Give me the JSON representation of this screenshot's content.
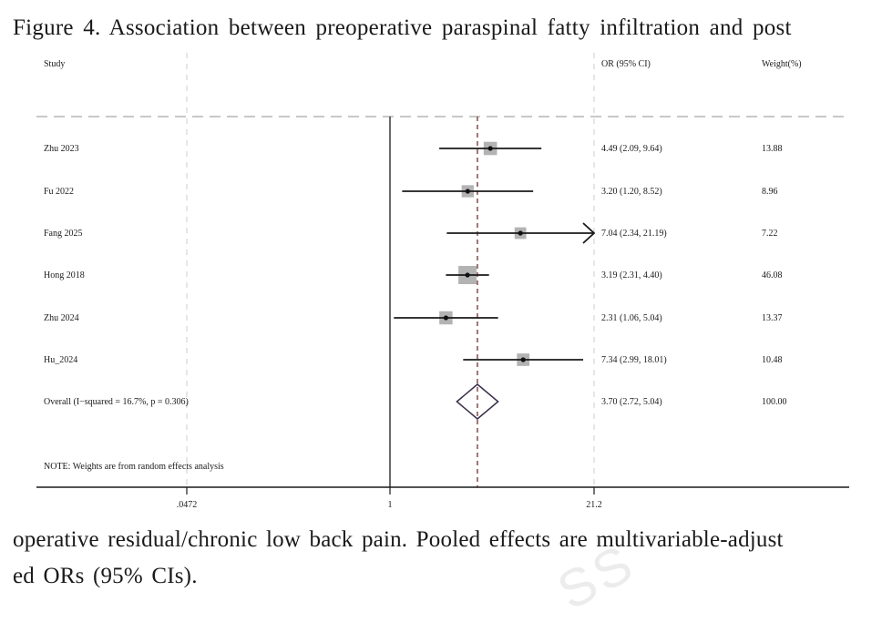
{
  "caption": {
    "top": "Figure 4. Association between preoperative paraspinal fatty infiltration and post",
    "bottom_line1": "operative residual/chronic low back pain. Pooled effects are multivariable-adjust",
    "bottom_line2": "ed ORs (95% CIs)."
  },
  "watermark": "SS",
  "chart_data": {
    "type": "forest",
    "x_scale": "log",
    "columns": {
      "study": "Study",
      "or": "OR (95% CI)",
      "weight": "Weight(%)"
    },
    "studies": [
      {
        "name": "Zhu 2023",
        "or": 4.49,
        "lo": 2.09,
        "hi": 9.64,
        "or_label": "4.49 (2.09, 9.64)",
        "weight": 13.88,
        "weight_label": "13.88"
      },
      {
        "name": "Fu 2022",
        "or": 3.2,
        "lo": 1.2,
        "hi": 8.52,
        "or_label": "3.20 (1.20, 8.52)",
        "weight": 8.96,
        "weight_label": "8.96"
      },
      {
        "name": "Fang 2025",
        "or": 7.04,
        "lo": 2.34,
        "hi": 21.19,
        "or_label": "7.04 (2.34, 21.19)",
        "weight": 7.22,
        "weight_label": "7.22",
        "arrow": true
      },
      {
        "name": "Hong 2018",
        "or": 3.19,
        "lo": 2.31,
        "hi": 4.4,
        "or_label": "3.19 (2.31, 4.40)",
        "weight": 46.08,
        "weight_label": "46.08"
      },
      {
        "name": "Zhu 2024",
        "or": 2.31,
        "lo": 1.06,
        "hi": 5.04,
        "or_label": "2.31 (1.06, 5.04)",
        "weight": 13.37,
        "weight_label": "13.37"
      },
      {
        "name": "Hu_2024",
        "or": 7.34,
        "lo": 2.99,
        "hi": 18.01,
        "or_label": "7.34 (2.99, 18.01)",
        "weight": 10.48,
        "weight_label": "10.48"
      }
    ],
    "overall": {
      "name": "Overall  (I−squared = 16.7%, p = 0.306)",
      "or": 3.7,
      "lo": 2.72,
      "hi": 5.04,
      "or_label": "3.70 (2.72, 5.04)",
      "weight_label": "100.00"
    },
    "note": "NOTE: Weights are from random effects analysis",
    "ticks": [
      {
        "value": 0.0472,
        "label": ".0472"
      },
      {
        "value": 1,
        "label": "1"
      },
      {
        "value": 21.2,
        "label": "21.2"
      }
    ],
    "null_value": 1,
    "colors": {
      "ci_line": "#1a1a1a",
      "box": "#b3b3b3",
      "dashed_overall": "#7a2a2a",
      "grid": "#cccccc",
      "diamond": "#3a2e4a"
    }
  }
}
